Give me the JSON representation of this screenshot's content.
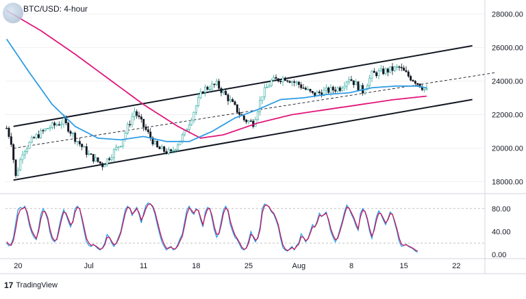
{
  "header": {
    "title": "BTC/USD: 4-hour"
  },
  "footer": {
    "brand": "TradingView",
    "brand_mark": "17"
  },
  "colors": {
    "candle_up": "#26a69a",
    "candle_down": "#131722",
    "ma_fast": "#2f9ce6",
    "ma_slow": "#e0157a",
    "channel": "#131722",
    "stoch_k": "#2f9ce6",
    "stoch_d": "#c2185b",
    "grid": "#e6e6e6"
  },
  "chart_data": [
    {
      "type": "candlestick",
      "title": "BTC/USD: 4-hour",
      "y_ticks": [
        "28000.00",
        "26000.00",
        "24000.00",
        "22000.00",
        "20000.00",
        "18000.00"
      ],
      "ylim": [
        17500,
        28500
      ],
      "x_ticks": [
        "20",
        "Jul",
        "11",
        "18",
        "25",
        "Aug",
        "8",
        "15",
        "22"
      ],
      "x_tick_index": [
        5,
        36,
        60,
        83,
        106,
        128,
        151,
        174,
        197
      ],
      "price_anchors": [
        [
          0,
          21200
        ],
        [
          2,
          20400
        ],
        [
          4,
          18300
        ],
        [
          7,
          19800
        ],
        [
          12,
          20600
        ],
        [
          18,
          21200
        ],
        [
          25,
          21600
        ],
        [
          30,
          20600
        ],
        [
          36,
          19600
        ],
        [
          42,
          19000
        ],
        [
          50,
          20300
        ],
        [
          56,
          22200
        ],
        [
          60,
          21300
        ],
        [
          66,
          20000
        ],
        [
          72,
          19700
        ],
        [
          78,
          20900
        ],
        [
          82,
          22200
        ],
        [
          86,
          23500
        ],
        [
          92,
          23800
        ],
        [
          98,
          22800
        ],
        [
          104,
          21700
        ],
        [
          108,
          21500
        ],
        [
          112,
          23200
        ],
        [
          116,
          24000
        ],
        [
          122,
          24200
        ],
        [
          128,
          23800
        ],
        [
          134,
          23200
        ],
        [
          140,
          23400
        ],
        [
          146,
          23600
        ],
        [
          150,
          24200
        ],
        [
          156,
          23400
        ],
        [
          160,
          24400
        ],
        [
          166,
          24600
        ],
        [
          172,
          24800
        ],
        [
          176,
          24300
        ],
        [
          180,
          23900
        ],
        [
          184,
          23400
        ]
      ],
      "ma_fast_anchors": [
        [
          0,
          26500
        ],
        [
          10,
          24500
        ],
        [
          20,
          22600
        ],
        [
          30,
          21300
        ],
        [
          40,
          20600
        ],
        [
          50,
          20500
        ],
        [
          60,
          20700
        ],
        [
          70,
          20400
        ],
        [
          80,
          20400
        ],
        [
          90,
          21000
        ],
        [
          100,
          21800
        ],
        [
          110,
          22300
        ],
        [
          120,
          22900
        ],
        [
          130,
          23000
        ],
        [
          140,
          23200
        ],
        [
          150,
          23300
        ],
        [
          160,
          23600
        ],
        [
          170,
          23700
        ],
        [
          180,
          23700
        ],
        [
          184,
          23600
        ]
      ],
      "ma_slow_anchors": [
        [
          0,
          28200
        ],
        [
          15,
          27000
        ],
        [
          30,
          25600
        ],
        [
          45,
          24100
        ],
        [
          60,
          22600
        ],
        [
          75,
          21300
        ],
        [
          85,
          20600
        ],
        [
          95,
          20800
        ],
        [
          110,
          21500
        ],
        [
          125,
          22000
        ],
        [
          140,
          22300
        ],
        [
          155,
          22600
        ],
        [
          170,
          22900
        ],
        [
          184,
          23100
        ]
      ],
      "channel": {
        "upper": [
          [
            3,
            21300
          ],
          [
            204,
            26100
          ]
        ],
        "middle": [
          [
            3,
            20000
          ],
          [
            214,
            24500
          ]
        ],
        "lower": [
          [
            3,
            18100
          ],
          [
            204,
            22900
          ]
        ]
      },
      "last_index": 184
    },
    {
      "type": "line",
      "title": "",
      "y_ticks": [
        "80.00",
        "40.00",
        "0.00"
      ],
      "ylim": [
        0,
        100
      ],
      "levels": [
        80,
        20
      ],
      "series": [
        {
          "values": [
            20,
            15,
            18,
            30,
            55,
            78,
            82,
            80,
            84,
            70,
            50,
            38,
            30,
            26,
            45,
            70,
            80,
            72,
            60,
            38,
            26,
            22,
            28,
            48,
            66,
            78,
            70,
            58,
            48,
            58,
            80,
            84,
            79,
            60,
            40,
            22,
            16,
            14,
            18,
            14,
            10,
            8,
            12,
            20,
            35,
            30,
            20,
            14,
            20,
            30,
            40,
            60,
            78,
            84,
            80,
            68,
            76,
            82,
            70,
            55,
            72,
            85,
            90,
            88,
            82,
            70,
            52,
            36,
            22,
            14,
            8,
            12,
            14,
            8,
            10,
            18,
            28,
            36,
            58,
            78,
            84,
            74,
            70,
            80,
            76,
            60,
            48,
            74,
            82,
            80,
            62,
            42,
            30,
            38,
            58,
            78,
            84,
            74,
            52,
            40,
            30,
            26,
            18,
            10,
            8,
            12,
            24,
            40,
            30,
            22,
            30,
            48,
            80,
            88,
            86,
            82,
            74,
            70,
            60,
            48,
            28,
            12,
            8,
            6,
            10,
            14,
            8,
            16,
            20,
            36,
            30,
            22,
            28,
            40,
            52,
            48,
            58,
            72,
            66,
            70,
            74,
            58,
            40,
            30,
            22,
            30,
            44,
            58,
            74,
            86,
            80,
            70,
            62,
            50,
            42,
            72,
            80,
            74,
            60,
            40,
            28,
            46,
            66,
            76,
            70,
            60,
            52,
            62,
            74,
            70,
            55,
            40,
            22,
            14,
            16,
            18,
            14,
            12,
            10,
            6,
            4
          ]
        },
        {
          "values": [
            22,
            18,
            16,
            25,
            45,
            68,
            78,
            80,
            82,
            74,
            56,
            42,
            34,
            28,
            40,
            62,
            75,
            74,
            64,
            44,
            30,
            24,
            26,
            42,
            60,
            74,
            72,
            62,
            52,
            56,
            74,
            82,
            80,
            64,
            46,
            28,
            20,
            16,
            17,
            15,
            12,
            9,
            11,
            17,
            30,
            30,
            23,
            17,
            19,
            27,
            37,
            55,
            72,
            82,
            81,
            71,
            74,
            80,
            73,
            60,
            68,
            80,
            87,
            88,
            84,
            74,
            58,
            42,
            28,
            18,
            11,
            11,
            13,
            10,
            10,
            15,
            24,
            32,
            51,
            71,
            81,
            77,
            72,
            78,
            77,
            64,
            52,
            68,
            79,
            80,
            67,
            48,
            35,
            36,
            52,
            72,
            81,
            77,
            58,
            45,
            34,
            28,
            21,
            13,
            9,
            11,
            20,
            35,
            32,
            25,
            28,
            43,
            73,
            85,
            86,
            83,
            76,
            72,
            63,
            52,
            33,
            17,
            10,
            7,
            9,
            12,
            9,
            14,
            18,
            31,
            30,
            24,
            27,
            37,
            48,
            48,
            55,
            68,
            67,
            69,
            72,
            61,
            45,
            34,
            26,
            28,
            40,
            54,
            69,
            82,
            81,
            73,
            65,
            54,
            45,
            66,
            77,
            75,
            63,
            45,
            32,
            42,
            60,
            72,
            71,
            63,
            55,
            60,
            71,
            70,
            58,
            44,
            28,
            18,
            16,
            17,
            15,
            13,
            11,
            8,
            6
          ]
        }
      ]
    }
  ]
}
